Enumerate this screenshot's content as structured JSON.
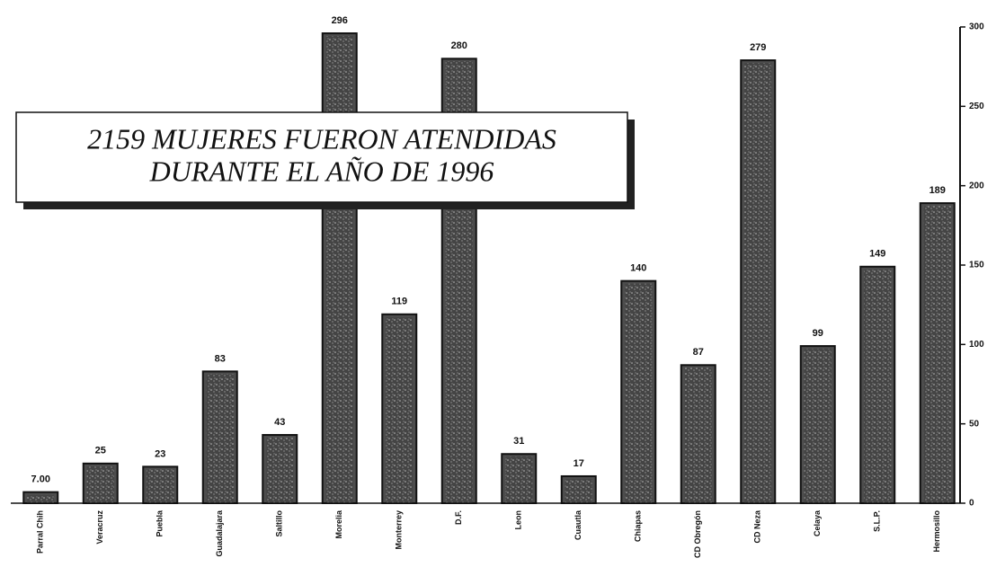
{
  "chart_data": {
    "type": "bar",
    "annotation": [
      "2159  MUJERES  FUERON  ATENDIDAS",
      "DURANTE  EL  AÑO  DE  1996"
    ],
    "categories": [
      "Parral Chih",
      "Veracruz",
      "Puebla",
      "Guadalajara",
      "Saltillo",
      "Morelia",
      "Monterrey",
      "D.F.",
      "Leon",
      "Cuautla",
      "Chiapas",
      "CD Obregón",
      "CD Neza",
      "Celaya",
      "S.L.P.",
      "Hermosillo"
    ],
    "values": [
      7,
      25,
      23,
      83,
      43,
      296,
      119,
      280,
      31,
      17,
      140,
      87,
      279,
      99,
      149,
      189
    ],
    "value_labels": [
      "7.00",
      "25",
      "23",
      "83",
      "43",
      "296",
      "119",
      "280",
      "31",
      "17",
      "140",
      "87",
      "279",
      "99",
      "149",
      "189"
    ],
    "color": "#4d4d4d",
    "ylim": [
      0,
      300
    ],
    "yticks": [
      0,
      50,
      100,
      150,
      200,
      250,
      300
    ],
    "y_axis_side": "right",
    "grid": false
  }
}
